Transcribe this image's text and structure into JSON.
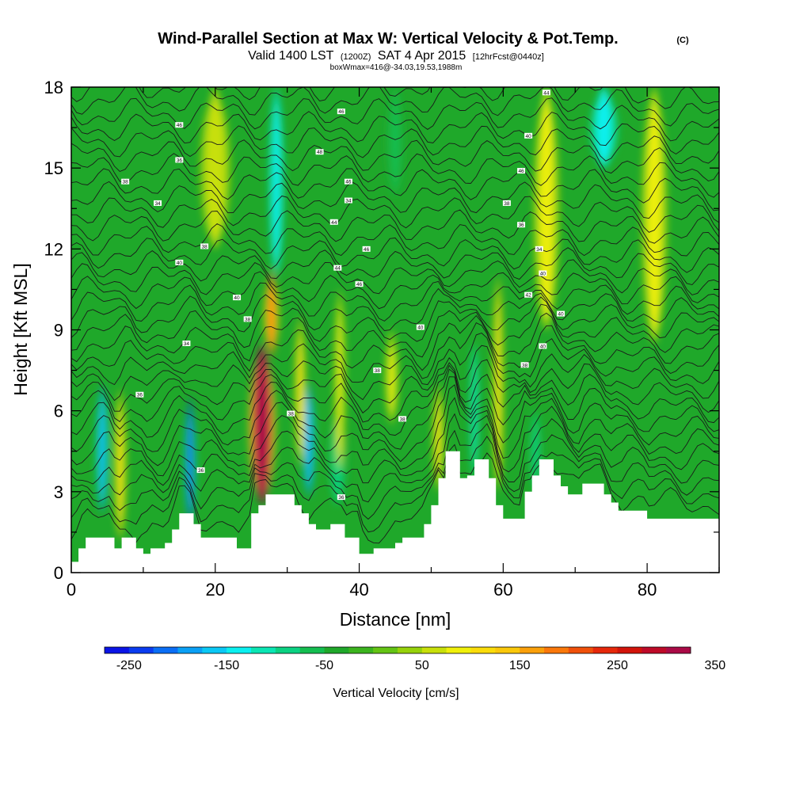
{
  "header": {
    "title": "Wind-Parallel Section at Max W: Vertical Velocity & Pot.Temp.",
    "title_mark": "(C)",
    "subtitle_a": "Valid 1400 LST",
    "subtitle_b": "(1200Z)",
    "subtitle_c": "SAT 4 Apr 2015",
    "subtitle_d": "[12hrFcst@0440z]",
    "note": "boxWmax=416@-34.03,19.53,1988m"
  },
  "chart_data": {
    "type": "heatmap",
    "xlabel": "Distance [nm]",
    "ylabel": "Height [Kft MSL]",
    "xlim": [
      0,
      90
    ],
    "ylim": [
      0,
      18
    ],
    "x_ticks": [
      0,
      20,
      40,
      60,
      80
    ],
    "y_ticks": [
      0,
      3,
      6,
      9,
      12,
      15,
      18
    ],
    "x_tick_labels": [
      "0",
      "20",
      "40",
      "60",
      "80"
    ],
    "y_tick_labels": [
      "0",
      "3",
      "6",
      "9",
      "12",
      "15",
      "18"
    ],
    "background_color": "#1fa82a",
    "updrafts": [
      {
        "x": 6.8,
        "bottom": 1.2,
        "top": 6.8,
        "width": 1.1,
        "w": 120
      },
      {
        "x": 26.5,
        "bottom": 2.5,
        "top": 8.5,
        "width": 2.6,
        "w": 416
      },
      {
        "x": 27.8,
        "bottom": 8.0,
        "top": 11.2,
        "width": 1.4,
        "w": 180
      },
      {
        "x": 31.8,
        "bottom": 4.0,
        "top": 9.5,
        "width": 1.0,
        "w": 120
      },
      {
        "x": 37.3,
        "bottom": 3.8,
        "top": 10.5,
        "width": 1.0,
        "w": 80
      },
      {
        "x": 44.5,
        "bottom": 5.5,
        "top": 9.0,
        "width": 1.2,
        "w": 90
      },
      {
        "x": 51.0,
        "bottom": 3.0,
        "top": 7.0,
        "width": 1.0,
        "w": 110
      },
      {
        "x": 59.3,
        "bottom": 3.0,
        "top": 11.0,
        "width": 1.0,
        "w": 110
      },
      {
        "x": 66.0,
        "bottom": 9.0,
        "top": 18.0,
        "width": 2.5,
        "w": 75
      },
      {
        "x": 81.0,
        "bottom": 8.5,
        "top": 18.0,
        "width": 2.5,
        "w": 75
      },
      {
        "x": 20.0,
        "bottom": 12.0,
        "top": 18.0,
        "width": 3.0,
        "w": 60
      }
    ],
    "downdrafts": [
      {
        "x": 4.3,
        "bottom": 2.2,
        "top": 7.0,
        "width": 1.2,
        "w": -180
      },
      {
        "x": 16.5,
        "bottom": 1.8,
        "top": 6.5,
        "width": 1.0,
        "w": -230
      },
      {
        "x": 33.0,
        "bottom": 2.8,
        "top": 7.0,
        "width": 1.2,
        "w": -200
      },
      {
        "x": 37.0,
        "bottom": 2.5,
        "top": 6.0,
        "width": 2.0,
        "w": -80
      },
      {
        "x": 56.0,
        "bottom": 3.5,
        "top": 8.5,
        "width": 1.0,
        "w": -120
      },
      {
        "x": 64.5,
        "bottom": 3.0,
        "top": 6.0,
        "width": 1.2,
        "w": -90
      },
      {
        "x": 28.5,
        "bottom": 11.0,
        "top": 18.0,
        "width": 1.6,
        "w": -140
      },
      {
        "x": 45.0,
        "bottom": 14.0,
        "top": 18.0,
        "width": 1.8,
        "w": -70
      },
      {
        "x": 74.0,
        "bottom": 15.0,
        "top": 18.0,
        "width": 3.0,
        "w": -140
      }
    ],
    "terrain": [
      [
        0,
        0.4
      ],
      [
        1,
        0.4
      ],
      [
        1,
        0.9
      ],
      [
        2,
        0.9
      ],
      [
        2,
        1.3
      ],
      [
        6,
        1.3
      ],
      [
        6,
        0.9
      ],
      [
        7,
        0.9
      ],
      [
        7,
        1.3
      ],
      [
        9,
        1.3
      ],
      [
        9,
        0.9
      ],
      [
        10,
        0.9
      ],
      [
        10,
        0.7
      ],
      [
        11,
        0.7
      ],
      [
        11,
        0.9
      ],
      [
        13,
        0.9
      ],
      [
        13,
        1.1
      ],
      [
        14,
        1.1
      ],
      [
        14,
        1.6
      ],
      [
        15,
        1.6
      ],
      [
        15,
        2.2
      ],
      [
        17,
        2.2
      ],
      [
        17,
        1.8
      ],
      [
        18,
        1.8
      ],
      [
        18,
        1.3
      ],
      [
        23,
        1.3
      ],
      [
        23,
        0.9
      ],
      [
        25,
        0.9
      ],
      [
        25,
        2.2
      ],
      [
        26,
        2.2
      ],
      [
        26,
        2.5
      ],
      [
        27,
        2.5
      ],
      [
        27,
        2.9
      ],
      [
        31,
        2.9
      ],
      [
        31,
        2.5
      ],
      [
        32,
        2.5
      ],
      [
        32,
        2.2
      ],
      [
        33,
        2.2
      ],
      [
        33,
        1.8
      ],
      [
        34,
        1.8
      ],
      [
        34,
        1.6
      ],
      [
        36,
        1.6
      ],
      [
        36,
        1.8
      ],
      [
        38,
        1.8
      ],
      [
        38,
        1.3
      ],
      [
        40,
        1.3
      ],
      [
        40,
        0.7
      ],
      [
        42,
        0.7
      ],
      [
        42,
        0.9
      ],
      [
        45,
        0.9
      ],
      [
        45,
        1.1
      ],
      [
        46,
        1.1
      ],
      [
        46,
        1.3
      ],
      [
        49,
        1.3
      ],
      [
        49,
        1.8
      ],
      [
        50,
        1.8
      ],
      [
        50,
        2.5
      ],
      [
        51,
        2.5
      ],
      [
        51,
        3.5
      ],
      [
        52,
        3.5
      ],
      [
        52,
        4.5
      ],
      [
        54,
        4.5
      ],
      [
        54,
        3.5
      ],
      [
        55,
        3.5
      ],
      [
        55,
        3.6
      ],
      [
        56,
        3.6
      ],
      [
        56,
        4.2
      ],
      [
        58,
        4.2
      ],
      [
        58,
        3.5
      ],
      [
        59,
        3.5
      ],
      [
        59,
        2.5
      ],
      [
        60,
        2.5
      ],
      [
        60,
        2.0
      ],
      [
        63,
        2.0
      ],
      [
        63,
        3.0
      ],
      [
        64,
        3.0
      ],
      [
        64,
        3.6
      ],
      [
        65,
        3.6
      ],
      [
        65,
        4.2
      ],
      [
        67,
        4.2
      ],
      [
        67,
        3.6
      ],
      [
        68,
        3.6
      ],
      [
        68,
        3.2
      ],
      [
        69,
        3.2
      ],
      [
        69,
        2.9
      ],
      [
        71,
        2.9
      ],
      [
        71,
        3.3
      ],
      [
        74,
        3.3
      ],
      [
        74,
        2.9
      ],
      [
        75,
        2.9
      ],
      [
        75,
        2.6
      ],
      [
        76,
        2.6
      ],
      [
        76,
        2.3
      ],
      [
        80,
        2.3
      ],
      [
        80,
        2.0
      ],
      [
        90,
        2.0
      ]
    ],
    "contour_labels": [
      {
        "x": 15,
        "y": 16.6,
        "text": "46"
      },
      {
        "x": 15,
        "y": 15.3,
        "text": "36"
      },
      {
        "x": 7.5,
        "y": 14.5,
        "text": "38"
      },
      {
        "x": 12,
        "y": 13.7,
        "text": "34"
      },
      {
        "x": 18.5,
        "y": 12.1,
        "text": "38"
      },
      {
        "x": 15,
        "y": 11.5,
        "text": "40"
      },
      {
        "x": 23,
        "y": 10.2,
        "text": "40"
      },
      {
        "x": 24.5,
        "y": 9.4,
        "text": "38"
      },
      {
        "x": 16,
        "y": 8.5,
        "text": "34"
      },
      {
        "x": 9.5,
        "y": 6.6,
        "text": "36"
      },
      {
        "x": 18,
        "y": 3.8,
        "text": "36"
      },
      {
        "x": 30.5,
        "y": 5.9,
        "text": "38"
      },
      {
        "x": 37.5,
        "y": 2.8,
        "text": "36"
      },
      {
        "x": 37.5,
        "y": 17.1,
        "text": "46"
      },
      {
        "x": 34.5,
        "y": 15.6,
        "text": "48"
      },
      {
        "x": 38.5,
        "y": 14.5,
        "text": "46"
      },
      {
        "x": 38.5,
        "y": 13.8,
        "text": "34"
      },
      {
        "x": 36.5,
        "y": 13.0,
        "text": "44"
      },
      {
        "x": 41,
        "y": 12.0,
        "text": "46"
      },
      {
        "x": 37,
        "y": 11.3,
        "text": "44"
      },
      {
        "x": 40,
        "y": 10.7,
        "text": "46"
      },
      {
        "x": 48.5,
        "y": 9.1,
        "text": "40"
      },
      {
        "x": 42.5,
        "y": 7.5,
        "text": "38"
      },
      {
        "x": 46,
        "y": 5.7,
        "text": "38"
      },
      {
        "x": 66,
        "y": 17.8,
        "text": "44"
      },
      {
        "x": 63.5,
        "y": 16.2,
        "text": "40"
      },
      {
        "x": 62.5,
        "y": 14.9,
        "text": "46"
      },
      {
        "x": 60.5,
        "y": 13.7,
        "text": "38"
      },
      {
        "x": 62.5,
        "y": 12.9,
        "text": "36"
      },
      {
        "x": 65,
        "y": 12.0,
        "text": "34"
      },
      {
        "x": 65.5,
        "y": 11.1,
        "text": "40"
      },
      {
        "x": 63.5,
        "y": 10.3,
        "text": "42"
      },
      {
        "x": 68,
        "y": 9.6,
        "text": "40"
      },
      {
        "x": 65.5,
        "y": 8.4,
        "text": "40"
      },
      {
        "x": 63,
        "y": 7.7,
        "text": "38"
      }
    ],
    "colorbar": {
      "title": "Vertical Velocity [cm/s]",
      "tick_labels": [
        "-250",
        "-150",
        "-50",
        "50",
        "150",
        "250",
        "350"
      ],
      "colors": [
        "#0a14e6",
        "#0a3cf0",
        "#0a6ef5",
        "#0aa0f5",
        "#0ac8f5",
        "#0af0f0",
        "#0ae6b4",
        "#0ad282",
        "#14be50",
        "#1fa82a",
        "#3cb41e",
        "#64c414",
        "#96d20a",
        "#c8e00a",
        "#f0f00a",
        "#fadc0a",
        "#fac80a",
        "#faa00a",
        "#fa780a",
        "#f0500a",
        "#e6280a",
        "#d2140a",
        "#be0a28",
        "#aa0a46"
      ]
    }
  }
}
